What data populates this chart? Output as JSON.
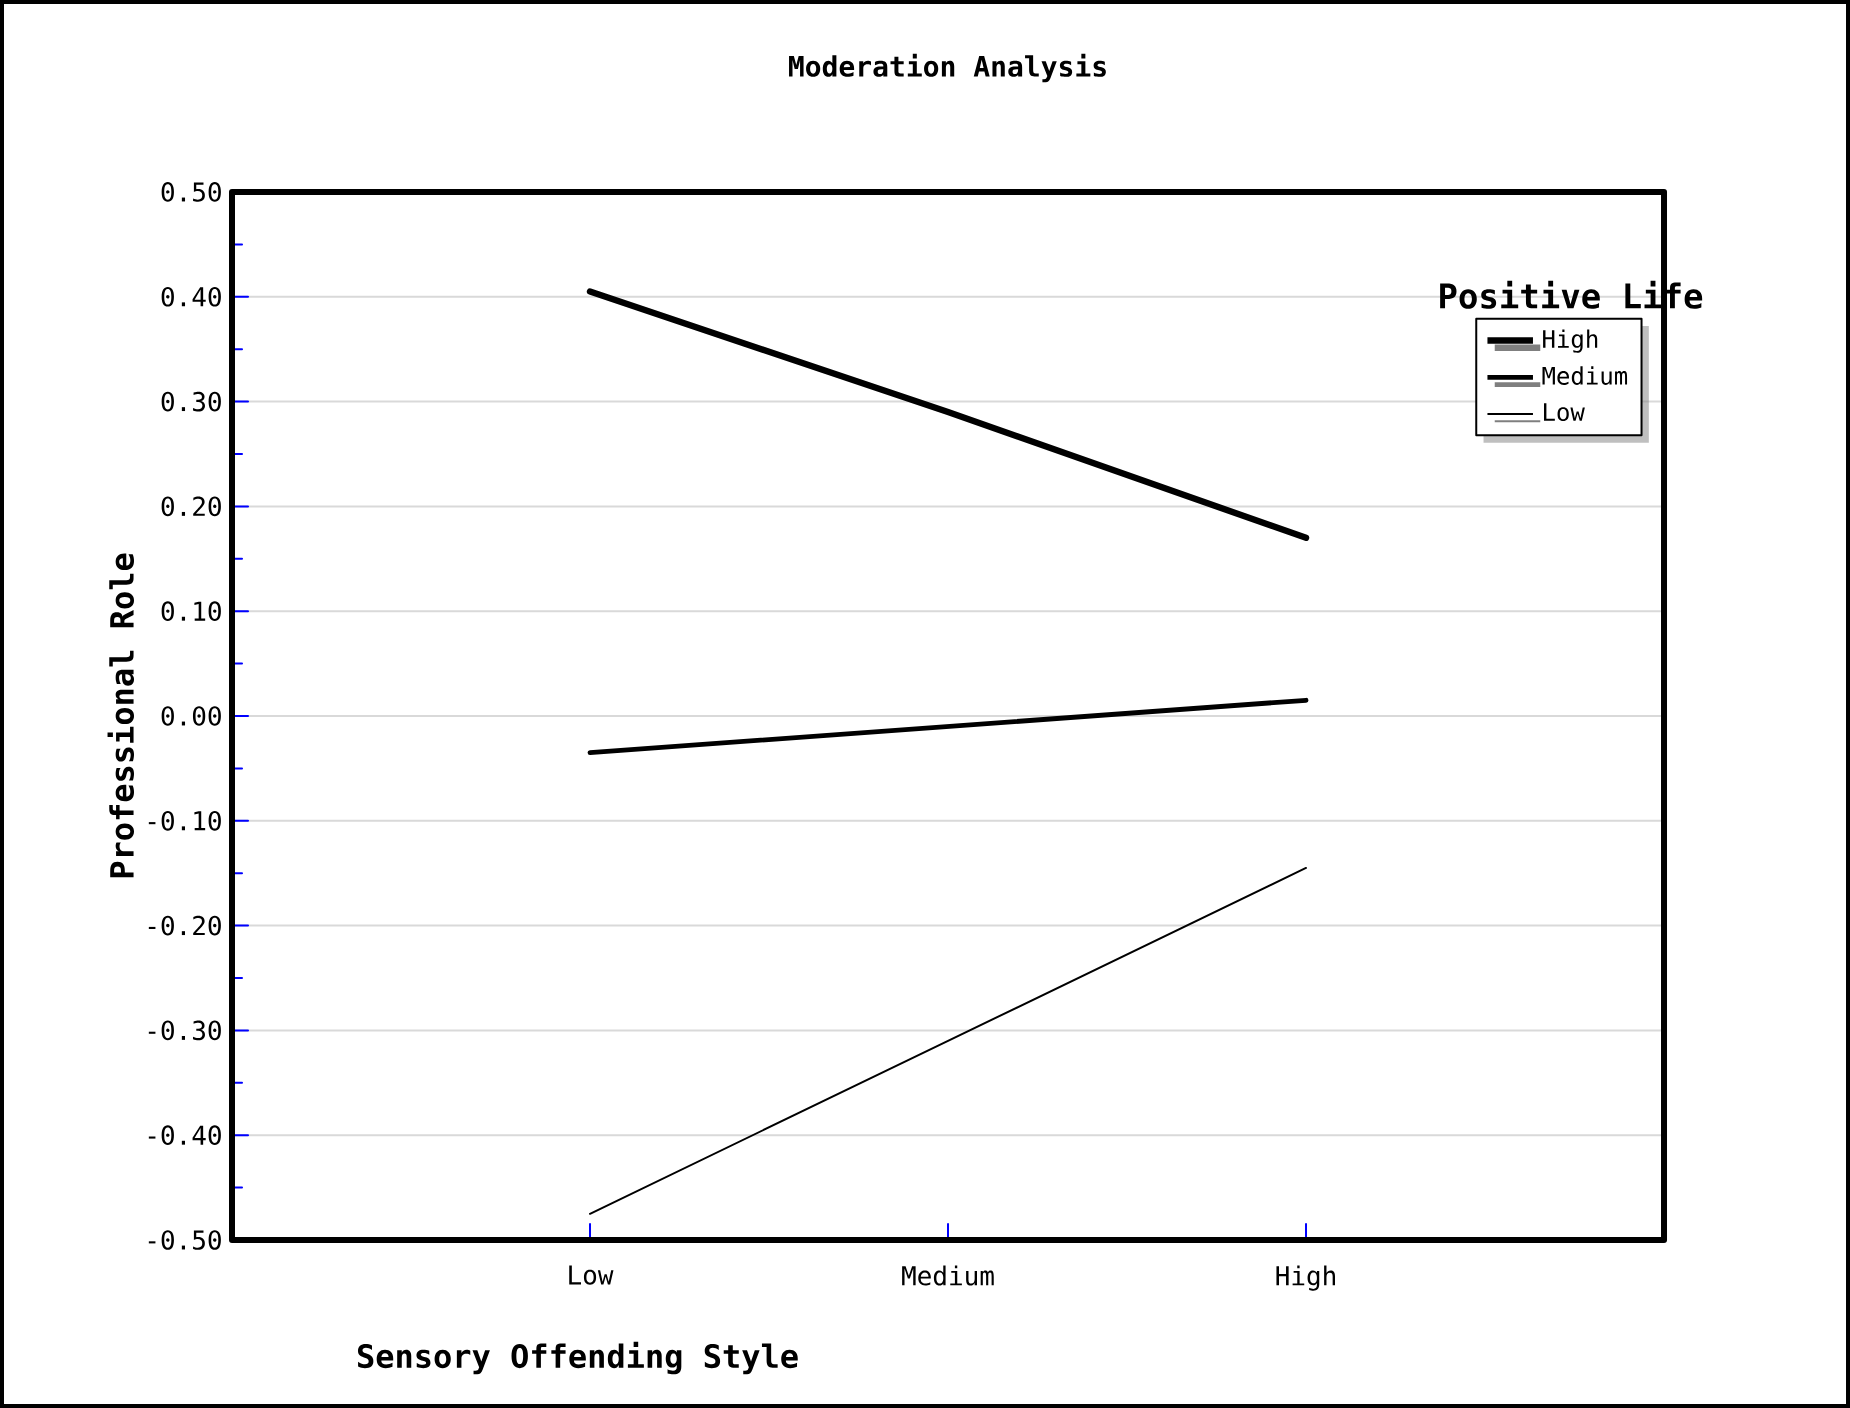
{
  "chart_data": {
    "type": "line",
    "title": "Moderation Analysis",
    "xlabel": "Sensory Offending Style",
    "ylabel": "Professional Role",
    "legend_title": "Positive Life",
    "categories": [
      "Low",
      "Medium",
      "High"
    ],
    "series": [
      {
        "name": "High",
        "color": "#000000",
        "values": [
          0.405,
          0.29,
          0.17
        ]
      },
      {
        "name": "Medium",
        "color": "#000000",
        "values": [
          -0.035,
          -0.01,
          0.015
        ]
      },
      {
        "name": "Low",
        "color": "#000000",
        "values": [
          -0.475,
          -0.31,
          -0.145
        ]
      }
    ],
    "ylim": [
      -0.5,
      0.5
    ],
    "yticks": [
      {
        "value": -0.5,
        "label": "-0.50"
      },
      {
        "value": -0.4,
        "label": "-0.40"
      },
      {
        "value": -0.3,
        "label": "-0.30"
      },
      {
        "value": -0.2,
        "label": "-0.20"
      },
      {
        "value": -0.1,
        "label": "-0.10"
      },
      {
        "value": 0,
        "label": "0.00"
      },
      {
        "value": 0.1,
        "label": "0.10"
      },
      {
        "value": 0.2,
        "label": "0.20"
      },
      {
        "value": 0.3,
        "label": "0.30"
      },
      {
        "value": 0.4,
        "label": "0.40"
      },
      {
        "value": 0.5,
        "label": "0.50"
      }
    ],
    "grid": "y",
    "legend": "top right",
    "marker": "none",
    "line_style": "solid"
  }
}
